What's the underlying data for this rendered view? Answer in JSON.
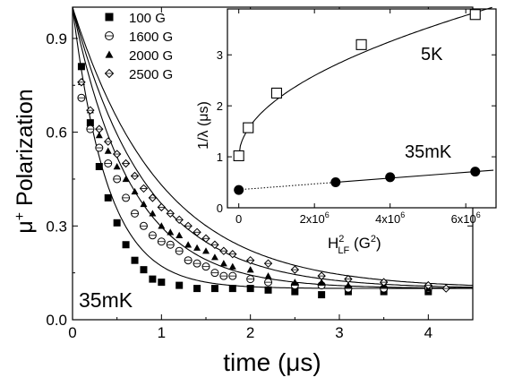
{
  "chart_data": [
    {
      "type": "scatter",
      "xlabel_main": "time (",
      "xlabel_unit": "μs",
      "xlabel_close": ")",
      "ylabel_sup": "+",
      "ylabel_mu": "μ",
      "ylabel_rest": " Polarization",
      "xlim": [
        0,
        4.5
      ],
      "ylim": [
        0,
        1.0
      ],
      "x_ticks": [
        {
          "v": 0,
          "label": "0"
        },
        {
          "v": 1,
          "label": "1"
        },
        {
          "v": 2,
          "label": "2"
        },
        {
          "v": 3,
          "label": "3"
        },
        {
          "v": 4,
          "label": "4"
        }
      ],
      "y_ticks": [
        {
          "v": 0,
          "label": "0.0"
        },
        {
          "v": 0.3,
          "label": "0.3"
        },
        {
          "v": 0.6,
          "label": "0.6"
        },
        {
          "v": 0.9,
          "label": "0.9"
        }
      ],
      "annotation": "35mK",
      "legend_position": "top-left",
      "series": [
        {
          "name": "100 G",
          "marker": "filled-square",
          "x": [
            0.1,
            0.2,
            0.3,
            0.4,
            0.5,
            0.6,
            0.7,
            0.8,
            0.9,
            1.0,
            1.2,
            1.4,
            1.6,
            1.8,
            2.0,
            2.2,
            2.5,
            2.8,
            3.1,
            3.5,
            4.0
          ],
          "y": [
            0.81,
            0.63,
            0.49,
            0.39,
            0.31,
            0.24,
            0.19,
            0.16,
            0.13,
            0.12,
            0.11,
            0.1,
            0.1,
            0.1,
            0.1,
            0.095,
            0.09,
            0.08,
            0.09,
            0.09,
            0.09
          ],
          "fit": [
            1.0,
            2.53,
            0.1
          ]
        },
        {
          "name": "1600 G",
          "marker": "open-circle",
          "x": [
            0.1,
            0.2,
            0.3,
            0.4,
            0.5,
            0.6,
            0.7,
            0.8,
            0.9,
            1.0,
            1.1,
            1.2,
            1.3,
            1.4,
            1.5,
            1.6,
            1.7,
            1.8,
            2.0,
            2.2,
            2.5,
            2.8,
            3.1,
            3.5,
            4.0
          ],
          "y": [
            0.71,
            0.61,
            0.55,
            0.5,
            0.45,
            0.39,
            0.34,
            0.3,
            0.27,
            0.25,
            0.24,
            0.22,
            0.19,
            0.18,
            0.17,
            0.15,
            0.14,
            0.14,
            0.13,
            0.12,
            0.11,
            0.11,
            0.1,
            0.1,
            0.1
          ],
          "fit": [
            1.0,
            1.52,
            0.1
          ]
        },
        {
          "name": "2000 G",
          "marker": "filled-triangle",
          "x": [
            0.1,
            0.2,
            0.3,
            0.4,
            0.5,
            0.6,
            0.7,
            0.8,
            0.9,
            1.0,
            1.1,
            1.2,
            1.3,
            1.4,
            1.5,
            1.6,
            1.7,
            1.8,
            2.0,
            2.2,
            2.5,
            2.8,
            3.1,
            3.5,
            4.0
          ],
          "y": [
            0.76,
            0.67,
            0.59,
            0.54,
            0.49,
            0.45,
            0.41,
            0.37,
            0.34,
            0.3,
            0.28,
            0.27,
            0.24,
            0.23,
            0.22,
            0.2,
            0.18,
            0.17,
            0.16,
            0.14,
            0.12,
            0.12,
            0.11,
            0.11,
            0.1
          ],
          "fit": [
            1.0,
            1.2,
            0.1
          ]
        },
        {
          "name": "2500 G",
          "marker": "open-diamond",
          "x": [
            0.1,
            0.2,
            0.3,
            0.4,
            0.5,
            0.6,
            0.7,
            0.8,
            0.9,
            1.0,
            1.1,
            1.2,
            1.3,
            1.4,
            1.5,
            1.6,
            1.7,
            1.8,
            2.0,
            2.2,
            2.5,
            2.8,
            3.1,
            3.5,
            4.0,
            4.2
          ],
          "y": [
            0.76,
            0.67,
            0.61,
            0.57,
            0.53,
            0.5,
            0.46,
            0.42,
            0.39,
            0.36,
            0.34,
            0.32,
            0.3,
            0.28,
            0.26,
            0.24,
            0.22,
            0.21,
            0.19,
            0.18,
            0.16,
            0.14,
            0.13,
            0.12,
            0.11,
            0.1
          ],
          "fit": [
            1.0,
            1.0,
            0.1
          ]
        }
      ]
    },
    {
      "type": "scatter",
      "inset": true,
      "ylabel": "1/λ (μs)",
      "xlabel_base": "H",
      "xlabel_sup": "2",
      "xlabel_sub": "LF",
      "xlabel_rest": " (G",
      "xlabel_rest_sup": "2",
      "xlabel_close": ")",
      "xlim": [
        -300000,
        6800000
      ],
      "ylim": [
        0,
        3.9
      ],
      "x_ticks": [
        {
          "v": 0,
          "base": "0",
          "exp": ""
        },
        {
          "v": 2000000,
          "base": "2x10",
          "exp": "6"
        },
        {
          "v": 4000000,
          "base": "4x10",
          "exp": "6"
        },
        {
          "v": 6000000,
          "base": "6x10",
          "exp": "6"
        }
      ],
      "y_ticks": [
        {
          "v": 0,
          "label": "0"
        },
        {
          "v": 1,
          "label": "1"
        },
        {
          "v": 2,
          "label": "2"
        },
        {
          "v": 3,
          "label": "3"
        }
      ],
      "series": [
        {
          "name": "5K",
          "marker": "open-square",
          "x": [
            0,
            250000,
            1000000,
            3240000,
            6250000
          ],
          "y": [
            1.02,
            1.57,
            2.25,
            3.2,
            3.79
          ]
        },
        {
          "name": "35mK",
          "marker": "filled-circle",
          "x": [
            0,
            2560000,
            4000000,
            6250000
          ],
          "y": [
            0.35,
            0.5,
            0.6,
            0.71
          ]
        }
      ]
    }
  ]
}
